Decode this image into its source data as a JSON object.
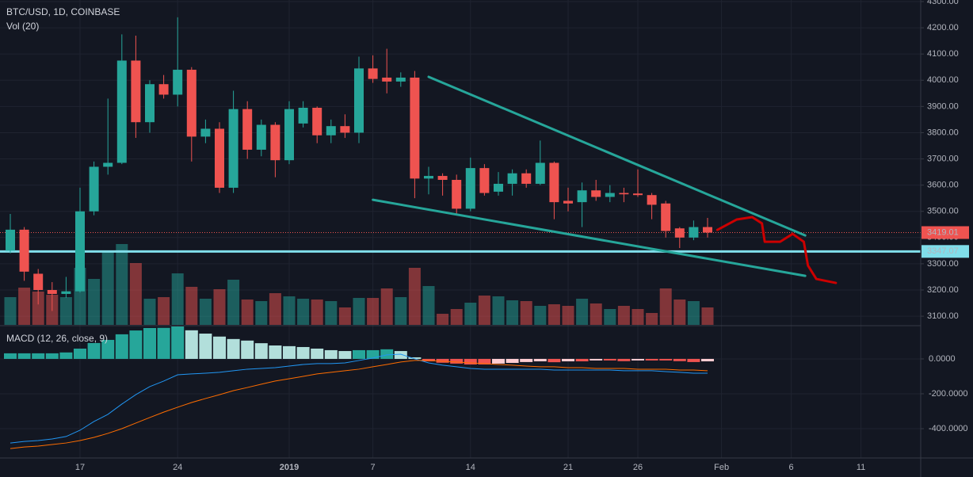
{
  "chart_data": [
    {
      "type": "candlestick",
      "title": "BTC/USD, 1D, COINBASE",
      "subtitle": "Vol (20)",
      "categories": [
        null,
        null,
        null,
        null,
        null,
        "17",
        null,
        null,
        null,
        null,
        null,
        null,
        "24",
        null,
        null,
        null,
        null,
        null,
        null,
        null,
        "2019",
        null,
        null,
        null,
        null,
        null,
        "7",
        null,
        null,
        null,
        null,
        null,
        null,
        "14",
        null,
        null,
        null,
        null,
        null,
        null,
        "21",
        null,
        null,
        null,
        null,
        "26",
        null,
        null,
        null,
        null,
        null,
        "Feb",
        null,
        null,
        null,
        null,
        "6",
        null,
        null,
        null,
        null,
        "11"
      ],
      "open": [
        3350,
        3430,
        3262,
        3200,
        3185,
        3195,
        3500,
        3670,
        3685,
        4075,
        3840,
        3985,
        3945,
        4040,
        3785,
        3815,
        3590,
        3890,
        3735,
        3830,
        3695,
        3835,
        3895,
        3790,
        3825,
        3800,
        4045,
        4010,
        3995,
        4010,
        3625,
        3635,
        3620,
        3510,
        3665,
        3575,
        3605,
        3645,
        3605,
        3685,
        3540,
        3535,
        3580,
        3555,
        3570,
        3568,
        3562,
        3530,
        3435,
        3400,
        3440,
        null,
        null,
        null,
        null,
        null,
        null,
        null,
        null,
        null,
        null,
        null
      ],
      "high": [
        3490,
        3440,
        3280,
        3230,
        3250,
        3590,
        3690,
        3930,
        4175,
        4170,
        4000,
        4020,
        4240,
        4050,
        3850,
        3840,
        3960,
        3920,
        3850,
        3840,
        3920,
        3920,
        3900,
        3850,
        3870,
        4090,
        4095,
        4120,
        4030,
        4035,
        3670,
        3645,
        3640,
        3705,
        3680,
        3650,
        3660,
        3660,
        3770,
        3690,
        3590,
        3610,
        3620,
        3600,
        3590,
        3660,
        3570,
        3540,
        3440,
        3465,
        3475,
        null,
        null,
        null,
        null,
        null,
        null,
        null,
        null,
        null,
        null,
        null
      ],
      "low": [
        3340,
        3235,
        3145,
        3120,
        3170,
        3190,
        3485,
        3640,
        3680,
        3780,
        3800,
        3930,
        3900,
        3690,
        3760,
        3570,
        3570,
        3700,
        3710,
        3630,
        3680,
        3820,
        3760,
        3760,
        3780,
        3760,
        3990,
        3950,
        3975,
        3550,
        3565,
        3560,
        3490,
        3500,
        3560,
        3560,
        3560,
        3590,
        3600,
        3470,
        3500,
        3440,
        3540,
        3535,
        3535,
        3555,
        3470,
        3400,
        3360,
        3390,
        3400,
        null,
        null,
        null,
        null,
        null,
        null,
        null,
        null,
        null,
        null,
        null
      ],
      "close": [
        3430,
        3270,
        3200,
        3185,
        3195,
        3500,
        3670,
        3685,
        4075,
        3840,
        3985,
        3945,
        4040,
        3785,
        3815,
        3590,
        3890,
        3735,
        3830,
        3695,
        3890,
        3895,
        3790,
        3825,
        3800,
        4045,
        4005,
        3995,
        4010,
        3625,
        3635,
        3620,
        3510,
        3665,
        3570,
        3605,
        3645,
        3605,
        3685,
        3535,
        3530,
        3580,
        3555,
        3570,
        3565,
        3562,
        3525,
        3425,
        3400,
        3440,
        3419.01,
        null,
        null,
        null,
        null,
        null,
        null,
        null,
        null,
        null,
        null,
        null
      ],
      "volume": [
        3500,
        4700,
        4200,
        3800,
        3500,
        7200,
        5800,
        9200,
        10200,
        7800,
        3300,
        3500,
        6500,
        4800,
        3300,
        4500,
        5700,
        3200,
        3000,
        4000,
        3600,
        3300,
        3200,
        3000,
        2200,
        3400,
        3400,
        4600,
        3500,
        7200,
        4900,
        1400,
        2000,
        2800,
        3700,
        3600,
        3100,
        3000,
        2400,
        2600,
        2400,
        3300,
        2700,
        2000,
        2400,
        2000,
        1500,
        4600,
        3200,
        3000,
        2200,
        null,
        null,
        null,
        null,
        null,
        null,
        null,
        null,
        null,
        null,
        null
      ],
      "up_color": "#26a69a",
      "down_color": "#ef5350",
      "ylim": [
        3067,
        4306
      ],
      "yticks": [
        {
          "value": 3100,
          "label": "3100.00"
        },
        {
          "value": 3200,
          "label": "3200.00"
        },
        {
          "value": 3300,
          "label": "3300.00"
        },
        {
          "value": 3400,
          "label": "3400.00"
        },
        {
          "value": 3500,
          "label": "3500.00"
        },
        {
          "value": 3600,
          "label": "3600.00"
        },
        {
          "value": 3700,
          "label": "3700.00"
        },
        {
          "value": 3800,
          "label": "3800.00"
        },
        {
          "value": 3900,
          "label": "3900.00"
        },
        {
          "value": 4000,
          "label": "4000.00"
        },
        {
          "value": 4100,
          "label": "4100.00"
        },
        {
          "value": 4200,
          "label": "4200.00"
        },
        {
          "value": 4300,
          "label": "4300.00"
        }
      ],
      "grid": true,
      "last_price": 3419.01,
      "horizontal_line": {
        "value": 3347.07,
        "color": "#80deea"
      },
      "drawings": [
        {
          "color": "#26a69a",
          "x": [
            30,
            57
          ],
          "y": [
            4013,
            3408
          ]
        },
        {
          "color": "#26a69a",
          "x": [
            26,
            57
          ],
          "y": [
            3544,
            3254
          ]
        },
        {
          "color": "#cc0000",
          "x": [
            50.7,
            52.1,
            53.2,
            53.9,
            54.1,
            55.2,
            56.1,
            56.9,
            57.2,
            57.8,
            59.2
          ],
          "y": [
            3429,
            3469,
            3478,
            3454,
            3384,
            3384,
            3414,
            3384,
            3293,
            3242,
            3227
          ]
        }
      ]
    },
    {
      "type": "macd",
      "title": "MACD (12, 26, close, 9)",
      "ylim": [
        -568,
        186
      ],
      "yticks": [
        {
          "value": 0,
          "label": "0.0000"
        },
        {
          "value": -200,
          "label": "-200.0000"
        },
        {
          "value": -400,
          "label": "-400.0000"
        }
      ],
      "histogram": {
        "values": [
          32,
          32,
          32,
          32,
          37,
          59,
          91,
          109,
          141,
          163,
          177,
          178,
          186,
          164,
          145,
          128,
          114,
          105,
          90,
          77,
          73,
          68,
          59,
          50,
          45,
          50,
          50,
          55,
          45,
          9,
          -14,
          -22,
          -27,
          -32,
          -32,
          -27,
          -23,
          -18,
          -14,
          -19,
          -14,
          -14,
          -9,
          -9,
          -13,
          -9,
          -9,
          -9,
          -13,
          -18,
          -14,
          null,
          null,
          null,
          null,
          null,
          null,
          null,
          null,
          null,
          null,
          null
        ],
        "colors": {
          "pos_up": "#26a69a",
          "pos_down": "#b2dfdb",
          "neg_down": "#ef5350",
          "neg_up": "#ffcdd2"
        }
      },
      "series": [
        {
          "color": "#2196f3",
          "values": [
            -482,
            -473,
            -468,
            -459,
            -445,
            -409,
            -359,
            -318,
            -259,
            -205,
            -159,
            -127,
            -91,
            -86,
            -82,
            -77,
            -68,
            -59,
            -55,
            -50,
            -41,
            -32,
            -27,
            -27,
            -23,
            -9,
            5,
            23,
            27,
            0,
            -23,
            -36,
            -45,
            -55,
            -59,
            -59,
            -59,
            -59,
            -59,
            -64,
            -64,
            -64,
            -64,
            -64,
            -68,
            -68,
            -68,
            -73,
            -77,
            -82,
            -82,
            null,
            null,
            null,
            null,
            null,
            null,
            null,
            null,
            null,
            null,
            null
          ]
        },
        {
          "color": "#ff6d00",
          "values": [
            -514,
            -505,
            -500,
            -491,
            -482,
            -468,
            -450,
            -427,
            -400,
            -368,
            -336,
            -305,
            -277,
            -250,
            -227,
            -205,
            -182,
            -164,
            -145,
            -127,
            -114,
            -100,
            -86,
            -77,
            -68,
            -59,
            -45,
            -32,
            -18,
            -9,
            -9,
            -14,
            -18,
            -23,
            -27,
            -32,
            -36,
            -41,
            -45,
            -45,
            -50,
            -50,
            -55,
            -55,
            -55,
            -59,
            -59,
            -59,
            -64,
            -64,
            -68,
            null,
            null,
            null,
            null,
            null,
            null,
            null,
            null,
            null,
            null,
            null
          ]
        }
      ]
    }
  ]
}
